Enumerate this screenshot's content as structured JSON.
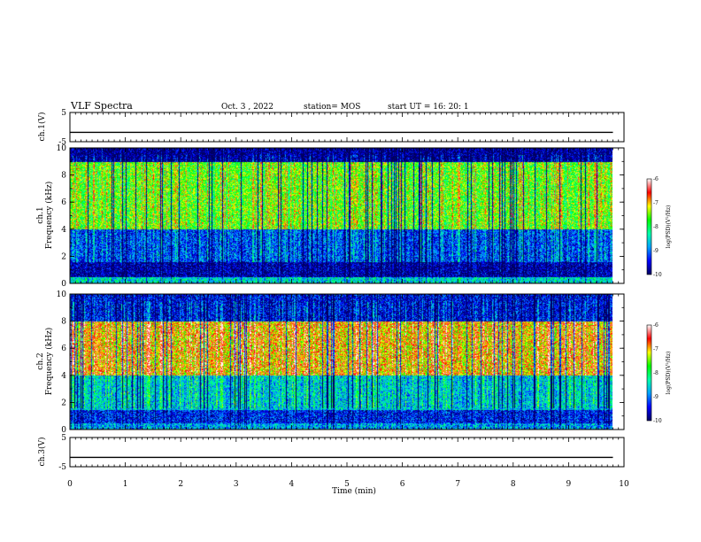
{
  "header": {
    "title": "VLF Spectra",
    "date": "Oct. 3  , 2022",
    "station": "station= MOS",
    "start": "start  UT =   16: 20: 1"
  },
  "chart_data": [
    {
      "type": "line",
      "name": "ch1-voltage",
      "ylabel": "ch.1(V)",
      "ylim": [
        -5,
        5
      ],
      "yticks": [
        "5",
        "-5"
      ],
      "x": [
        0,
        1,
        2,
        3,
        4,
        5,
        6,
        7,
        8,
        9,
        9.8
      ],
      "y": [
        -1.8,
        -1.8,
        -1.8,
        -1.8,
        -1.8,
        -1.8,
        -1.8,
        -1.8,
        -1.8,
        -1.8,
        -1.8
      ]
    },
    {
      "type": "heatmap",
      "name": "ch1-spectrogram",
      "ylabel": "ch.1\nFrequency (kHz)",
      "ylabel_lines": [
        "ch.1",
        "Frequency (kHz)"
      ],
      "ylim": [
        0,
        10
      ],
      "yticks": [
        "0",
        "2",
        "4",
        "6",
        "8",
        "10"
      ],
      "xlim": [
        0,
        9.8
      ],
      "colorbar": {
        "label": "log(PSD)(V²/Hz)",
        "range": [
          -10,
          -6
        ],
        "ticks": [
          "-6",
          "-7",
          "-8",
          "-9",
          "-10"
        ],
        "colors": [
          "#000060",
          "#0000ff",
          "#00a0ff",
          "#00ffaa",
          "#00ff00",
          "#ffff00",
          "#ff0000",
          "#ffffff"
        ]
      },
      "band_level": [
        {
          "freq_khz": [
            0,
            0.5
          ],
          "level": -8.5
        },
        {
          "freq_khz": [
            0.5,
            1.6
          ],
          "level": -9.8
        },
        {
          "freq_khz": [
            1.6,
            4
          ],
          "level": -9.2
        },
        {
          "freq_khz": [
            4,
            9
          ],
          "level": -7.6
        },
        {
          "freq_khz": [
            9,
            10
          ],
          "level": -9.9
        }
      ]
    },
    {
      "type": "heatmap",
      "name": "ch2-spectrogram",
      "ylabel": "ch.2\nFrequency (kHz)",
      "ylabel_lines": [
        "ch.2",
        "Frequency (kHz)"
      ],
      "ylim": [
        0,
        10
      ],
      "yticks": [
        "0",
        "2",
        "4",
        "6",
        "8",
        "10"
      ],
      "xlim": [
        0,
        9.8
      ],
      "colorbar": {
        "label": "log(PSD)(V²/Hz)",
        "range": [
          -10,
          -6
        ],
        "ticks": [
          "-6",
          "-7",
          "-8",
          "-9",
          "-10"
        ],
        "colors": [
          "#000060",
          "#0000ff",
          "#00a0ff",
          "#00ffaa",
          "#00ff00",
          "#ffff00",
          "#ff0000",
          "#ffffff"
        ]
      },
      "band_level": [
        {
          "freq_khz": [
            0,
            0.5
          ],
          "level": -8.8
        },
        {
          "freq_khz": [
            0.5,
            1.5
          ],
          "level": -9.4
        },
        {
          "freq_khz": [
            1.5,
            4
          ],
          "level": -8.6
        },
        {
          "freq_khz": [
            4,
            8
          ],
          "level": -7.0
        },
        {
          "freq_khz": [
            8,
            10
          ],
          "level": -9.5
        }
      ]
    },
    {
      "type": "line",
      "name": "ch3-voltage",
      "ylabel": "ch.3(V)",
      "ylim": [
        -5,
        5
      ],
      "yticks": [
        "5",
        "-5"
      ],
      "x": [
        0,
        1,
        2,
        3,
        4,
        5,
        6,
        7,
        8,
        9,
        9.8
      ],
      "y": [
        -1.8,
        -1.8,
        -1.8,
        -1.8,
        -1.8,
        -1.8,
        -1.8,
        -1.8,
        -1.8,
        -1.8,
        -1.8
      ]
    }
  ],
  "x_axis": {
    "label": "Time  (min)",
    "range": [
      0,
      10
    ],
    "ticks": [
      "0",
      "1",
      "2",
      "3",
      "4",
      "5",
      "6",
      "7",
      "8",
      "9",
      "10"
    ]
  }
}
